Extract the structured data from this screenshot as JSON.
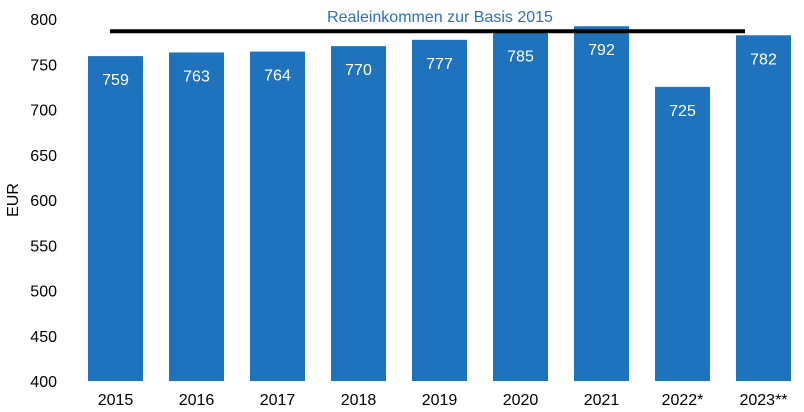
{
  "chart_data": {
    "type": "bar",
    "title": "",
    "xlabel": "",
    "ylabel": "EUR",
    "ylim": [
      400,
      800
    ],
    "yticks": [
      400,
      450,
      500,
      550,
      600,
      650,
      700,
      750,
      800
    ],
    "categories": [
      "2015",
      "2016",
      "2017",
      "2018",
      "2019",
      "2020",
      "2021",
      "2022*",
      "2023**"
    ],
    "values": [
      759,
      763,
      764,
      770,
      777,
      785,
      792,
      725,
      782
    ],
    "reference_line": {
      "label": "Realeinkommen zur Basis 2015",
      "value": 782,
      "color": "#000000",
      "label_color": "#2f6fbf"
    },
    "bar_color": "#1f72bc",
    "grid": false
  }
}
